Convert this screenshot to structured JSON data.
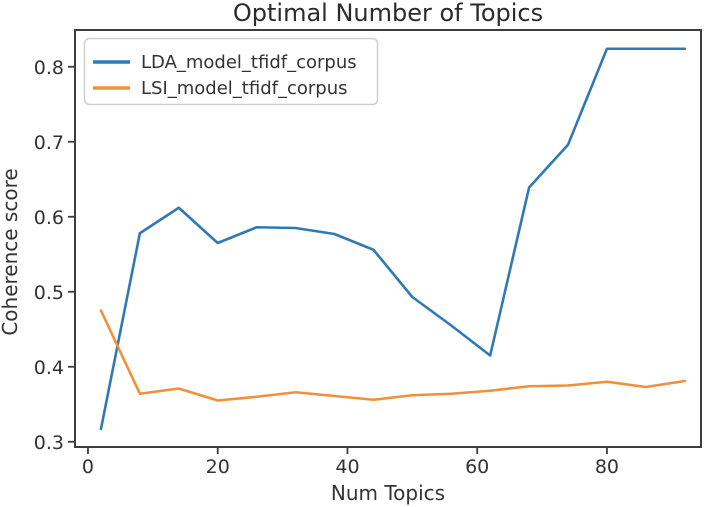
{
  "figure": {
    "background": "#ffffff",
    "text_color": "#333333",
    "axis_color": "#3d3d3d"
  },
  "chart_data": {
    "type": "line",
    "title": "Optimal Number of Topics",
    "xlabel": "Num Topics",
    "ylabel": "Coherence score",
    "x": [
      2,
      8,
      14,
      20,
      26,
      32,
      38,
      44,
      50,
      56,
      62,
      68,
      74,
      80,
      86,
      92
    ],
    "series": [
      {
        "name": "LDA_model_tfidf_corpus",
        "color": "#3079b5",
        "values": [
          0.317,
          0.578,
          0.612,
          0.565,
          0.586,
          0.585,
          0.577,
          0.556,
          0.493,
          0.455,
          0.415,
          0.639,
          0.696,
          0.824,
          0.824,
          0.824
        ]
      },
      {
        "name": "LSI_model_tfidf_corpus",
        "color": "#f0903b",
        "values": [
          0.475,
          0.364,
          0.371,
          0.355,
          0.36,
          0.366,
          0.361,
          0.356,
          0.362,
          0.364,
          0.368,
          0.374,
          0.375,
          0.38,
          0.373,
          0.381
        ]
      }
    ],
    "xticks": [
      0,
      20,
      40,
      60,
      80
    ],
    "yticks": [
      0.3,
      0.4,
      0.5,
      0.6,
      0.7,
      0.8
    ],
    "xlim": [
      -2,
      94.5
    ],
    "ylim": [
      0.293,
      0.849
    ],
    "grid": false,
    "legend_position": "upper left"
  }
}
